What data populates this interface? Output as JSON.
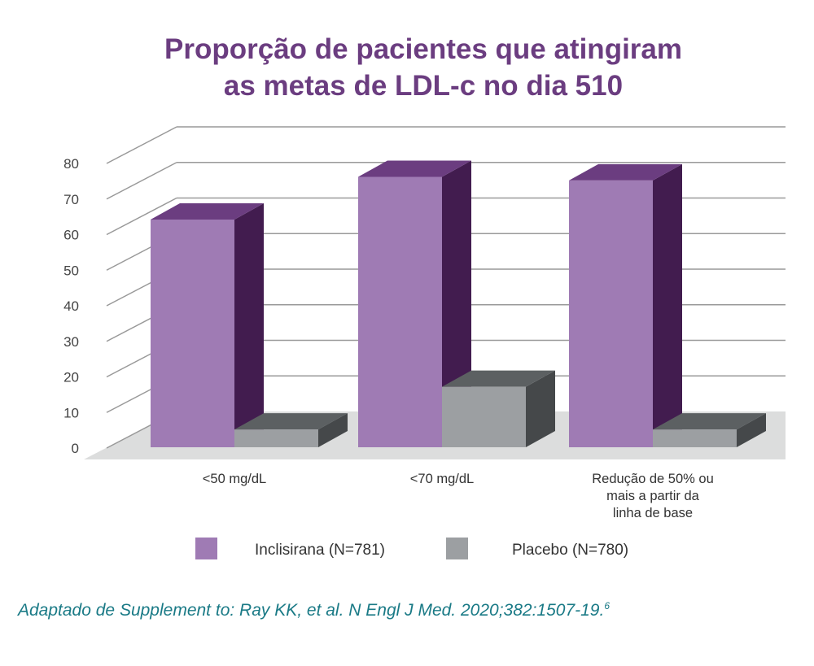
{
  "chart_data": {
    "type": "bar",
    "title": "Proporção de pacientes que atingiram as metas de LDL-c no dia 510",
    "title_lines": [
      "Proporção de pacientes que atingiram",
      "as metas de LDL-c no dia 510"
    ],
    "categories": [
      [
        "<50 mg/dL"
      ],
      [
        "<70 mg/dL"
      ],
      [
        "Redução de 50% ou",
        "mais a partir da",
        "linha de base"
      ]
    ],
    "series": [
      {
        "name": "Inclisirana (N=781)",
        "values": [
          64,
          76,
          75
        ],
        "color": "#9f7bb4"
      },
      {
        "name": "Placebo (N=780)",
        "values": [
          5,
          17,
          5
        ],
        "color": "#9c9fa2"
      }
    ],
    "ylim": [
      0,
      80
    ],
    "yticks": [
      0,
      10,
      20,
      30,
      40,
      50,
      60,
      70,
      80
    ],
    "grid": true,
    "style": "3d",
    "legend_position": "bottom"
  },
  "source": {
    "text": "Adaptado de Supplement to: Ray KK, et al. N Engl J Med. 2020;382:1507-19.",
    "superscript": "6"
  }
}
